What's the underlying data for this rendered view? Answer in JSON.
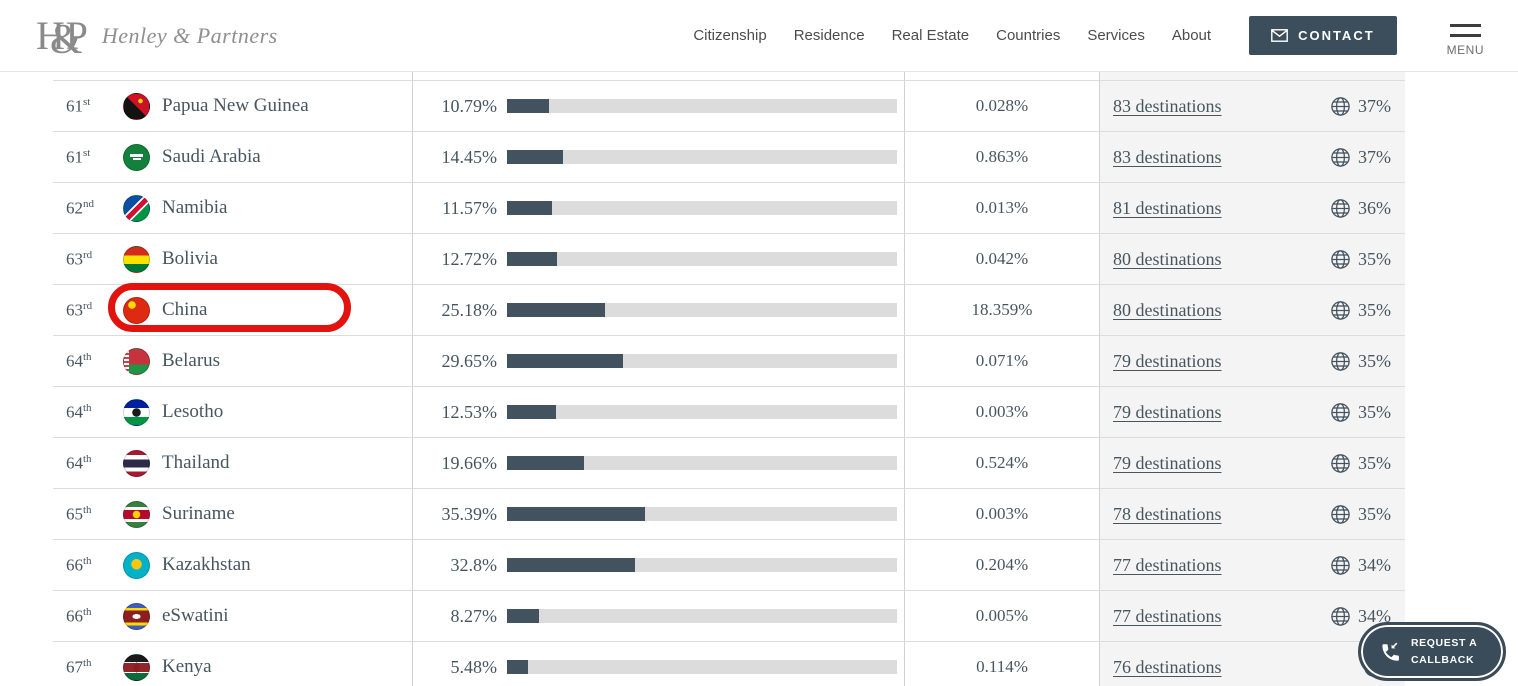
{
  "header": {
    "logo_monogram": {
      "h": "H",
      "amp": "&",
      "p": "P"
    },
    "logo_text": "Henley & Partners",
    "nav": [
      "Citizenship",
      "Residence",
      "Real Estate",
      "Countries",
      "Services",
      "About"
    ],
    "contact_label": "CONTACT",
    "menu_label": "MENU"
  },
  "colors": {
    "accent_slate": "#3c4e5c",
    "bar_fill": "#42525f",
    "bar_track": "#dcdcdc",
    "table_text": "#47555f",
    "highlight_red": "#e2120e",
    "last_column_bg": "#f4f4f4"
  },
  "table": {
    "rows": [
      {
        "rank": "61",
        "suffix": "st",
        "country": "Papua New Guinea",
        "power": "10.79%",
        "power_pct": 10.79,
        "share": "0.028%",
        "destinations": "83 destinations",
        "freedom": "37%",
        "flag_icon": "flag-papua-new-guinea",
        "flag_css": "radial-gradient(circle at 66% 28%, #f9d616 0 2px, rgba(0,0,0,0) 2.5px), linear-gradient(to bottom left, #cf1126 49%, #121212 51%)"
      },
      {
        "rank": "61",
        "suffix": "st",
        "country": "Saudi Arabia",
        "power": "14.45%",
        "power_pct": 14.45,
        "share": "0.863%",
        "destinations": "83 destinations",
        "freedom": "37%",
        "flag_icon": "flag-saudi-arabia",
        "flag_css": "linear-gradient(#fdfdfd,#fdfdfd) 50% 42%/13px 3px no-repeat, linear-gradient(#fdfdfd,#fdfdfd) 50% 58%/8px 2px no-repeat, linear-gradient(#13813b,#13813b)"
      },
      {
        "rank": "62",
        "suffix": "nd",
        "country": "Namibia",
        "power": "11.57%",
        "power_pct": 11.57,
        "share": "0.013%",
        "destinations": "81 destinations",
        "freedom": "36%",
        "flag_icon": "flag-namibia",
        "flag_css": "linear-gradient(135deg, #0b4ea2 40%, #ffffff 40% 45%, #d21034 45% 59%, #ffffff 59% 64%, #009543 64%)"
      },
      {
        "rank": "63",
        "suffix": "rd",
        "country": "Bolivia",
        "power": "12.72%",
        "power_pct": 12.72,
        "share": "0.042%",
        "destinations": "80 destinations",
        "freedom": "35%",
        "flag_icon": "flag-bolivia",
        "flag_css": "linear-gradient(#d52b1e 0 34%, #f9e300 34% 67%, #007934 67%)"
      },
      {
        "rank": "63",
        "suffix": "rd",
        "country": "China",
        "power": "25.18%",
        "power_pct": 25.18,
        "share": "18.359%",
        "destinations": "80 destinations",
        "freedom": "35%",
        "flag_icon": "flag-china",
        "flag_css": "radial-gradient(circle at 32% 28%, #ffde00 0 3.5px, rgba(0,0,0,0) 4px), linear-gradient(#dd2a10,#dd2a10)"
      },
      {
        "rank": "64",
        "suffix": "th",
        "country": "Belarus",
        "power": "29.65%",
        "power_pct": 29.65,
        "share": "0.071%",
        "destinations": "79 destinations",
        "freedom": "35%",
        "flag_icon": "flag-belarus",
        "flag_css": "repeating-linear-gradient(#b94a52 0 2px, #ffffff 2px 4px) left/5px 100% no-repeat, linear-gradient(#c8313e 0 63%, #1e9444 63%)"
      },
      {
        "rank": "64",
        "suffix": "th",
        "country": "Lesotho",
        "power": "12.53%",
        "power_pct": 12.53,
        "share": "0.003%",
        "destinations": "79 destinations",
        "freedom": "35%",
        "flag_icon": "flag-lesotho",
        "flag_css": "radial-gradient(circle at 50% 50%, #1a1a1a 0 4px, rgba(0,0,0,0) 4.5px), linear-gradient(#00209f 0 32%, #ffffff 32% 68%, #009543 68%)"
      },
      {
        "rank": "64",
        "suffix": "th",
        "country": "Thailand",
        "power": "19.66%",
        "power_pct": 19.66,
        "share": "0.524%",
        "destinations": "79 destinations",
        "freedom": "35%",
        "flag_icon": "flag-thailand",
        "flag_css": "linear-gradient(#a51931 0 17%, #ffffff 17% 34%, #2d2a4a 34% 66%, #ffffff 66% 83%, #a51931 83%)"
      },
      {
        "rank": "65",
        "suffix": "th",
        "country": "Suriname",
        "power": "35.39%",
        "power_pct": 35.39,
        "share": "0.003%",
        "destinations": "78 destinations",
        "freedom": "35%",
        "flag_icon": "flag-suriname",
        "flag_css": "radial-gradient(circle at 50% 50%, #ffd100 0 3.5px, rgba(0,0,0,0) 4px), linear-gradient(#377e3f 0 20%, #ffffff 20% 32%, #b40a2d 32% 68%, #ffffff 68% 80%, #377e3f 80%)"
      },
      {
        "rank": "66",
        "suffix": "th",
        "country": "Kazakhstan",
        "power": "32.8%",
        "power_pct": 32.8,
        "share": "0.204%",
        "destinations": "77 destinations",
        "freedom": "34%",
        "flag_icon": "flag-kazakhstan",
        "flag_css": "radial-gradient(circle at 50% 45%, #fec50c 0 5px, rgba(0,0,0,0) 5.5px), linear-gradient(#00b2c8,#00b2c8)"
      },
      {
        "rank": "66",
        "suffix": "th",
        "country": "eSwatini",
        "power": "8.27%",
        "power_pct": 8.27,
        "share": "0.005%",
        "destinations": "77 destinations",
        "freedom": "34%",
        "flag_icon": "flag-eswatini",
        "flag_css": "radial-gradient(ellipse 7px 4px at 50% 50%, #f5f5f5 0 60%, rgba(0,0,0,0) 61%), linear-gradient(#3e5eb9 0 15%, #ffd900 15% 26%, #8c1d21 26% 74%, #ffd900 74% 85%, #3e5eb9 85%)"
      },
      {
        "rank": "67",
        "suffix": "th",
        "country": "Kenya",
        "power": "5.48%",
        "power_pct": 5.48,
        "share": "0.114%",
        "destinations": "76 destinations",
        "freedom": "",
        "flag_icon": "flag-kenya",
        "flag_css": "radial-gradient(ellipse 5px 8px at 50% 50%, #8c1d21 0 60%, rgba(0,0,0,0) 61%), linear-gradient(#1a1a1a 0 28%, #ffffff 28% 32%, #922529 32% 68%, #ffffff 68% 72%, #0b6b3a 72%)"
      }
    ]
  },
  "highlight": {
    "country": "China",
    "color": "#e2120e"
  },
  "callback": {
    "line1": "REQUEST A",
    "line2": "CALLBACK"
  }
}
